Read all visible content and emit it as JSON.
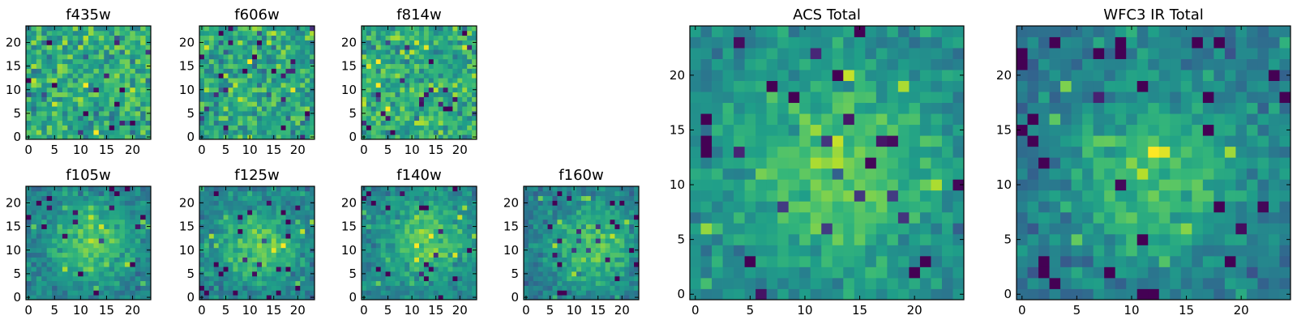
{
  "chart_data": [
    {
      "type": "heatmap",
      "title": "f435w",
      "grid_size": 24,
      "colormap": "viridis",
      "x_ticks": [
        0,
        5,
        10,
        15,
        20
      ],
      "y_ticks": [
        0,
        5,
        10,
        15,
        20
      ],
      "xlim": [
        -0.5,
        23.5
      ],
      "ylim": [
        -0.5,
        23.5
      ],
      "pattern": "noise",
      "brightness": 0.62,
      "seed": 11
    },
    {
      "type": "heatmap",
      "title": "f606w",
      "grid_size": 24,
      "colormap": "viridis",
      "x_ticks": [
        0,
        5,
        10,
        15,
        20
      ],
      "y_ticks": [
        0,
        5,
        10,
        15,
        20
      ],
      "xlim": [
        -0.5,
        23.5
      ],
      "ylim": [
        -0.5,
        23.5
      ],
      "pattern": "noise",
      "brightness": 0.6,
      "seed": 23
    },
    {
      "type": "heatmap",
      "title": "f814w",
      "grid_size": 24,
      "colormap": "viridis",
      "x_ticks": [
        0,
        5,
        10,
        15,
        20
      ],
      "y_ticks": [
        0,
        5,
        10,
        15,
        20
      ],
      "xlim": [
        -0.5,
        23.5
      ],
      "ylim": [
        -0.5,
        23.5
      ],
      "pattern": "noise",
      "brightness": 0.63,
      "seed": 37
    },
    {
      "type": "heatmap",
      "title": "f105w",
      "grid_size": 24,
      "colormap": "viridis",
      "x_ticks": [
        0,
        5,
        10,
        15,
        20
      ],
      "y_ticks": [
        0,
        5,
        10,
        15,
        20
      ],
      "xlim": [
        -0.5,
        23.5
      ],
      "ylim": [
        -0.5,
        23.5
      ],
      "pattern": "centered-source",
      "brightness": 0.55,
      "source_center": [
        12,
        12
      ],
      "seed": 41
    },
    {
      "type": "heatmap",
      "title": "f125w",
      "grid_size": 24,
      "colormap": "viridis",
      "x_ticks": [
        0,
        5,
        10,
        15,
        20
      ],
      "y_ticks": [
        0,
        5,
        10,
        15,
        20
      ],
      "xlim": [
        -0.5,
        23.5
      ],
      "ylim": [
        -0.5,
        23.5
      ],
      "pattern": "centered-source",
      "brightness": 0.55,
      "source_center": [
        12,
        11
      ],
      "seed": 53
    },
    {
      "type": "heatmap",
      "title": "f140w",
      "grid_size": 24,
      "colormap": "viridis",
      "x_ticks": [
        0,
        5,
        10,
        15,
        20
      ],
      "y_ticks": [
        0,
        5,
        10,
        15,
        20
      ],
      "xlim": [
        -0.5,
        23.5
      ],
      "ylim": [
        -0.5,
        23.5
      ],
      "pattern": "centered-source",
      "brightness": 0.57,
      "source_center": [
        13,
        12
      ],
      "seed": 67
    },
    {
      "type": "heatmap",
      "title": "f160w",
      "grid_size": 24,
      "colormap": "viridis",
      "x_ticks": [
        0,
        5,
        10,
        15,
        20
      ],
      "y_ticks": [
        0,
        5,
        10,
        15,
        20
      ],
      "xlim": [
        -0.5,
        23.5
      ],
      "ylim": [
        -0.5,
        23.5
      ],
      "pattern": "centered-source",
      "brightness": 0.54,
      "source_center": [
        14,
        11
      ],
      "seed": 79
    },
    {
      "type": "heatmap",
      "title": "ACS Total",
      "grid_size": 25,
      "colormap": "viridis",
      "x_ticks": [
        0,
        5,
        10,
        15,
        20
      ],
      "y_ticks": [
        0,
        5,
        10,
        15,
        20
      ],
      "xlim": [
        -0.5,
        24.5
      ],
      "ylim": [
        -0.5,
        24.5
      ],
      "pattern": "centered-source",
      "brightness": 0.6,
      "source_center": [
        13,
        11
      ],
      "seed": 97
    },
    {
      "type": "heatmap",
      "title": "WFC3 IR Total",
      "grid_size": 25,
      "colormap": "viridis",
      "x_ticks": [
        0,
        5,
        10,
        15,
        20
      ],
      "y_ticks": [
        0,
        5,
        10,
        15,
        20
      ],
      "xlim": [
        -0.5,
        24.5
      ],
      "ylim": [
        -0.5,
        24.5
      ],
      "pattern": "centered-source",
      "brightness": 0.5,
      "source_center": [
        12,
        11
      ],
      "seed": 131
    }
  ]
}
